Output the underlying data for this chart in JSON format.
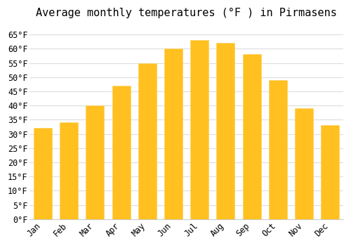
{
  "title": "Average monthly temperatures (°F ) in Pirmasens",
  "months": [
    "Jan",
    "Feb",
    "Mar",
    "Apr",
    "May",
    "Jun",
    "Jul",
    "Aug",
    "Sep",
    "Oct",
    "Nov",
    "Dec"
  ],
  "values": [
    32,
    34,
    40,
    47,
    55,
    60,
    63,
    62,
    58,
    49,
    39,
    33
  ],
  "bar_color_face": "#FFC020",
  "bar_color_edge": "#FFD060",
  "ylim": [
    0,
    68
  ],
  "yticks": [
    0,
    5,
    10,
    15,
    20,
    25,
    30,
    35,
    40,
    45,
    50,
    55,
    60,
    65
  ],
  "background_color": "#ffffff",
  "grid_color": "#dddddd",
  "title_fontsize": 11,
  "tick_fontsize": 8.5,
  "font_family": "monospace"
}
